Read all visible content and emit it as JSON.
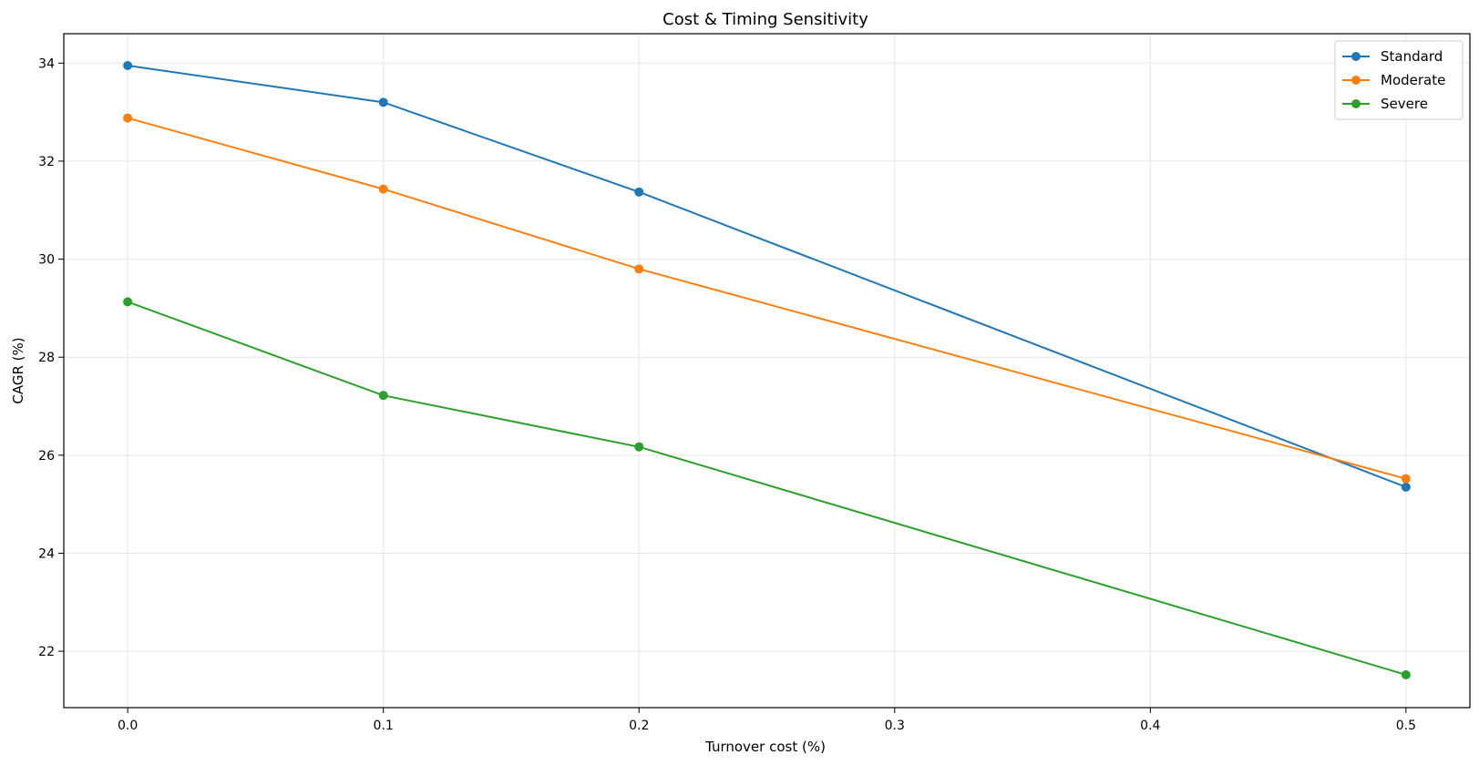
{
  "chart_data": {
    "type": "line",
    "title": "Cost & Timing Sensitivity",
    "xlabel": "Turnover cost (%)",
    "ylabel": "CAGR (%)",
    "xlim": [
      -0.025,
      0.525
    ],
    "ylim": [
      20.85,
      34.6
    ],
    "x_ticks": [
      "0.0",
      "0.1",
      "0.2",
      "0.3",
      "0.4",
      "0.5"
    ],
    "y_ticks": [
      "22",
      "24",
      "26",
      "28",
      "30",
      "32",
      "34"
    ],
    "grid": true,
    "legend_position": "top-right",
    "x": [
      0.0,
      0.1,
      0.2,
      0.5
    ],
    "series": [
      {
        "name": "Standard",
        "color": "#1f77b4",
        "values": [
          33.95,
          33.2,
          31.37,
          25.35
        ]
      },
      {
        "name": "Moderate",
        "color": "#ff7f0e",
        "values": [
          32.88,
          31.43,
          29.8,
          25.52
        ]
      },
      {
        "name": "Severe",
        "color": "#2ca02c",
        "values": [
          29.13,
          27.22,
          26.17,
          21.52
        ]
      }
    ]
  }
}
